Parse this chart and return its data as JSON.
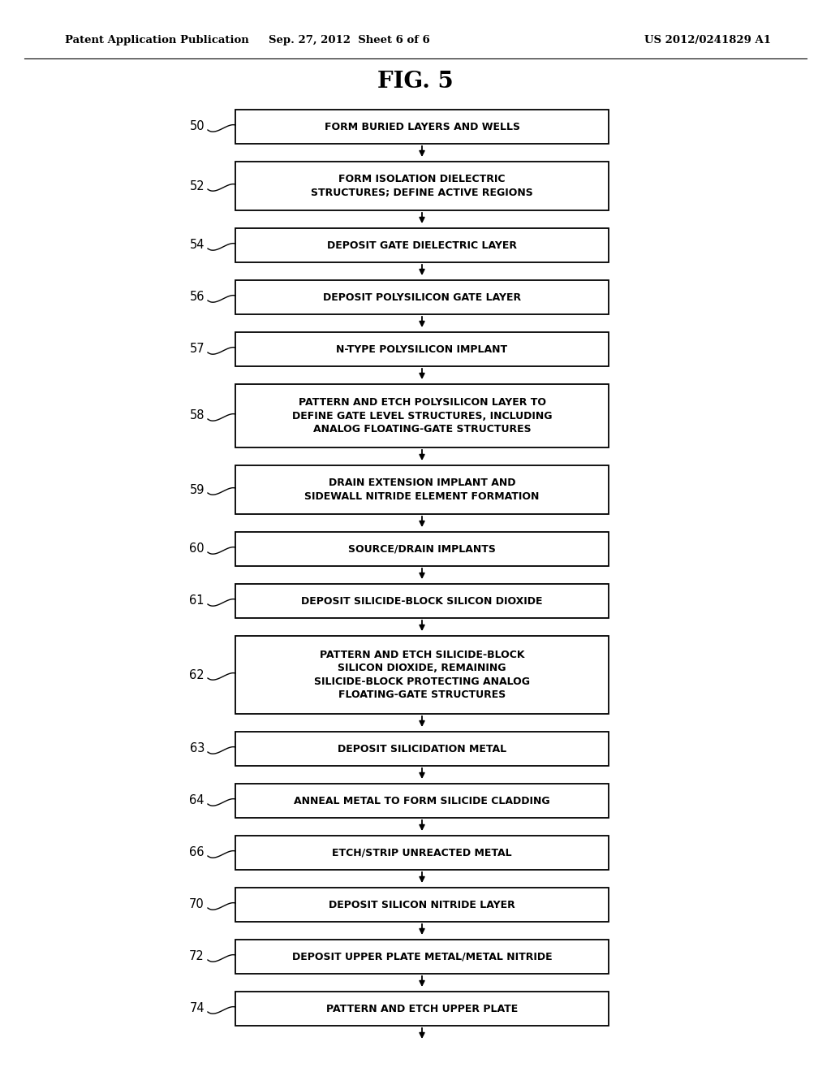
{
  "title": "FIG. 5",
  "header_left": "Patent Application Publication",
  "header_center": "Sep. 27, 2012  Sheet 6 of 6",
  "header_right": "US 2012/0241829 A1",
  "background_color": "#ffffff",
  "boxes": [
    {
      "label": "50",
      "text": "FORM BURIED LAYERS AND WELLS",
      "lines": 1
    },
    {
      "label": "52",
      "text": "FORM ISOLATION DIELECTRIC\nSTRUCTURES; DEFINE ACTIVE REGIONS",
      "lines": 2
    },
    {
      "label": "54",
      "text": "DEPOSIT GATE DIELECTRIC LAYER",
      "lines": 1
    },
    {
      "label": "56",
      "text": "DEPOSIT POLYSILICON GATE LAYER",
      "lines": 1
    },
    {
      "label": "57",
      "text": "N-TYPE POLYSILICON IMPLANT",
      "lines": 1
    },
    {
      "label": "58",
      "text": "PATTERN AND ETCH POLYSILICON LAYER TO\nDEFINE GATE LEVEL STRUCTURES, INCLUDING\nANALOG FLOATING-GATE STRUCTURES",
      "lines": 3
    },
    {
      "label": "59",
      "text": "DRAIN EXTENSION IMPLANT AND\nSIDEWALL NITRIDE ELEMENT FORMATION",
      "lines": 2
    },
    {
      "label": "60",
      "text": "SOURCE/DRAIN IMPLANTS",
      "lines": 1
    },
    {
      "label": "61",
      "text": "DEPOSIT SILICIDE-BLOCK SILICON DIOXIDE",
      "lines": 1
    },
    {
      "label": "62",
      "text": "PATTERN AND ETCH SILICIDE-BLOCK\nSILICON DIOXIDE, REMAINING\nSILICIDE-BLOCK PROTECTING ANALOG\nFLOATING-GATE STRUCTURES",
      "lines": 4
    },
    {
      "label": "63",
      "text": "DEPOSIT SILICIDATION METAL",
      "lines": 1
    },
    {
      "label": "64",
      "text": "ANNEAL METAL TO FORM SILICIDE CLADDING",
      "lines": 1
    },
    {
      "label": "66",
      "text": "ETCH/STRIP UNREACTED METAL",
      "lines": 1
    },
    {
      "label": "70",
      "text": "DEPOSIT SILICON NITRIDE LAYER",
      "lines": 1
    },
    {
      "label": "72",
      "text": "DEPOSIT UPPER PLATE METAL/METAL NITRIDE",
      "lines": 1
    },
    {
      "label": "74",
      "text": "PATTERN AND ETCH UPPER PLATE",
      "lines": 1
    }
  ],
  "text_fontsize": 9.0,
  "label_fontsize": 10.5,
  "title_fontsize": 20,
  "header_fontsize": 9.5
}
